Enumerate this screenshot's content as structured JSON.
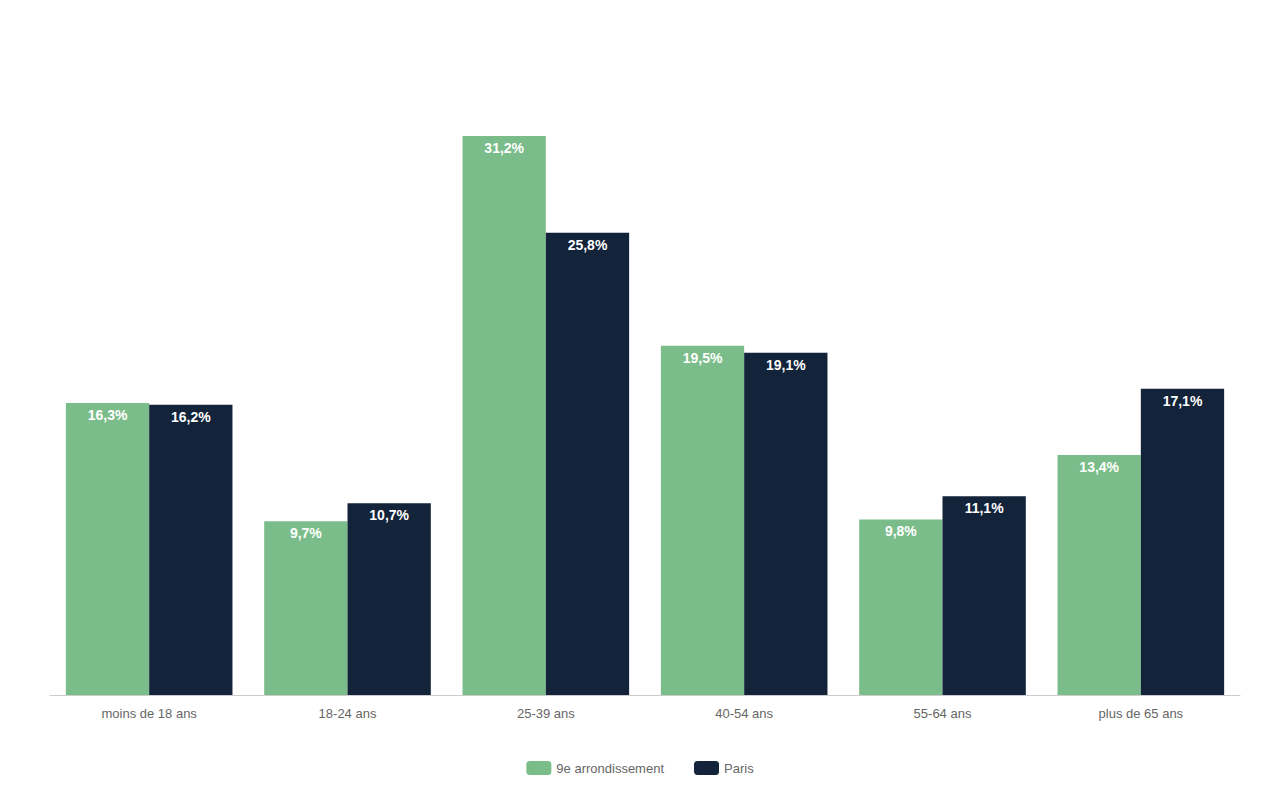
{
  "chart_data": {
    "type": "bar",
    "categories": [
      "moins de 18 ans",
      "18-24 ans",
      "25-39 ans",
      "40-54 ans",
      "55-64 ans",
      "plus de 65 ans"
    ],
    "series": [
      {
        "name": "9e arrondissement",
        "color": "#7BBD8A",
        "values": [
          16.3,
          9.7,
          31.2,
          19.5,
          9.8,
          13.4
        ],
        "value_labels": [
          "16,3%",
          "9,7%",
          "31,2%",
          "19,5%",
          "9,8%",
          "13,4%"
        ]
      },
      {
        "name": "Paris",
        "color": "#12233A",
        "values": [
          16.2,
          10.7,
          25.8,
          19.1,
          11.1,
          17.1
        ],
        "value_labels": [
          "16,2%",
          "10,7%",
          "25,8%",
          "19,1%",
          "11,1%",
          "17,1%"
        ]
      }
    ],
    "ylim": [
      0,
      36
    ],
    "data_labels": true,
    "tick_labels": "x",
    "grid": false,
    "legend": "bottom"
  }
}
